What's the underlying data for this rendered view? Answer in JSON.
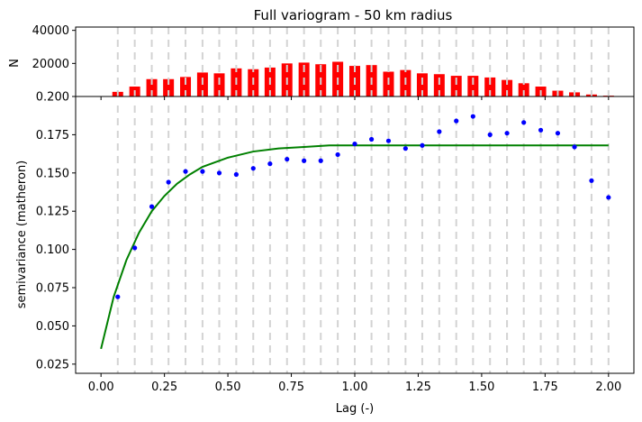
{
  "chart_data": [
    {
      "type": "bar",
      "title": "Full variogram - 50 km radius",
      "xlabel": "",
      "ylabel": "N",
      "xlim": [
        -0.1,
        2.1
      ],
      "ylim": [
        0,
        42000
      ],
      "yticks": [
        20000,
        40000
      ],
      "ytick_labels": [
        "20000",
        "40000"
      ],
      "bar_color": "#ff0000",
      "x": [
        0.066,
        0.133,
        0.2,
        0.266,
        0.333,
        0.4,
        0.466,
        0.533,
        0.6,
        0.666,
        0.733,
        0.8,
        0.866,
        0.933,
        1.0,
        1.066,
        1.133,
        1.2,
        1.266,
        1.333,
        1.4,
        1.466,
        1.533,
        1.6,
        1.666,
        1.733,
        1.8,
        1.866,
        1.933,
        2.0
      ],
      "values": [
        2800,
        6000,
        10500,
        10500,
        11800,
        14500,
        14000,
        17000,
        16500,
        17500,
        20000,
        20500,
        19500,
        21000,
        18500,
        19000,
        15000,
        16000,
        14000,
        13500,
        12500,
        12500,
        11500,
        10000,
        8000,
        6000,
        3500,
        2500,
        1200,
        500
      ]
    },
    {
      "type": "scatter",
      "title": "",
      "xlabel": "Lag (-)",
      "ylabel": "semivariance (matheron)",
      "xlim": [
        -0.1,
        2.1
      ],
      "ylim": [
        0.019,
        0.2
      ],
      "xticks": [
        0.0,
        0.25,
        0.5,
        0.75,
        1.0,
        1.25,
        1.5,
        1.75,
        2.0
      ],
      "xtick_labels": [
        "0.00",
        "0.25",
        "0.50",
        "0.75",
        "1.00",
        "1.25",
        "1.50",
        "1.75",
        "2.00"
      ],
      "yticks": [
        0.025,
        0.05,
        0.075,
        0.1,
        0.125,
        0.15,
        0.175,
        0.2
      ],
      "ytick_labels": [
        "0.025",
        "0.050",
        "0.075",
        "0.100",
        "0.125",
        "0.150",
        "0.175",
        "0.200"
      ],
      "grid": false,
      "points_color": "#0000ff",
      "model_color": "#008000",
      "points": {
        "x": [
          0.066,
          0.133,
          0.2,
          0.266,
          0.333,
          0.4,
          0.466,
          0.533,
          0.6,
          0.666,
          0.733,
          0.8,
          0.866,
          0.933,
          1.0,
          1.066,
          1.133,
          1.2,
          1.266,
          1.333,
          1.4,
          1.466,
          1.533,
          1.6,
          1.666,
          1.733,
          1.8,
          1.866,
          1.933,
          2.0
        ],
        "y": [
          0.069,
          0.101,
          0.128,
          0.144,
          0.151,
          0.151,
          0.15,
          0.149,
          0.153,
          0.156,
          0.159,
          0.158,
          0.158,
          0.162,
          0.169,
          0.172,
          0.171,
          0.166,
          0.168,
          0.177,
          0.184,
          0.187,
          0.175,
          0.176,
          0.183,
          0.178,
          0.176,
          0.167,
          0.145,
          0.134
        ]
      },
      "model": {
        "x": [
          0.0,
          0.05,
          0.1,
          0.15,
          0.2,
          0.25,
          0.3,
          0.35,
          0.4,
          0.5,
          0.6,
          0.7,
          0.8,
          0.9,
          1.0,
          1.25,
          1.5,
          1.75,
          2.0
        ],
        "y": [
          0.035,
          0.069,
          0.093,
          0.111,
          0.125,
          0.135,
          0.143,
          0.149,
          0.154,
          0.16,
          0.164,
          0.166,
          0.167,
          0.168,
          0.168,
          0.168,
          0.168,
          0.168,
          0.168
        ]
      },
      "bin_edges_color": "#d3d3d3"
    }
  ]
}
